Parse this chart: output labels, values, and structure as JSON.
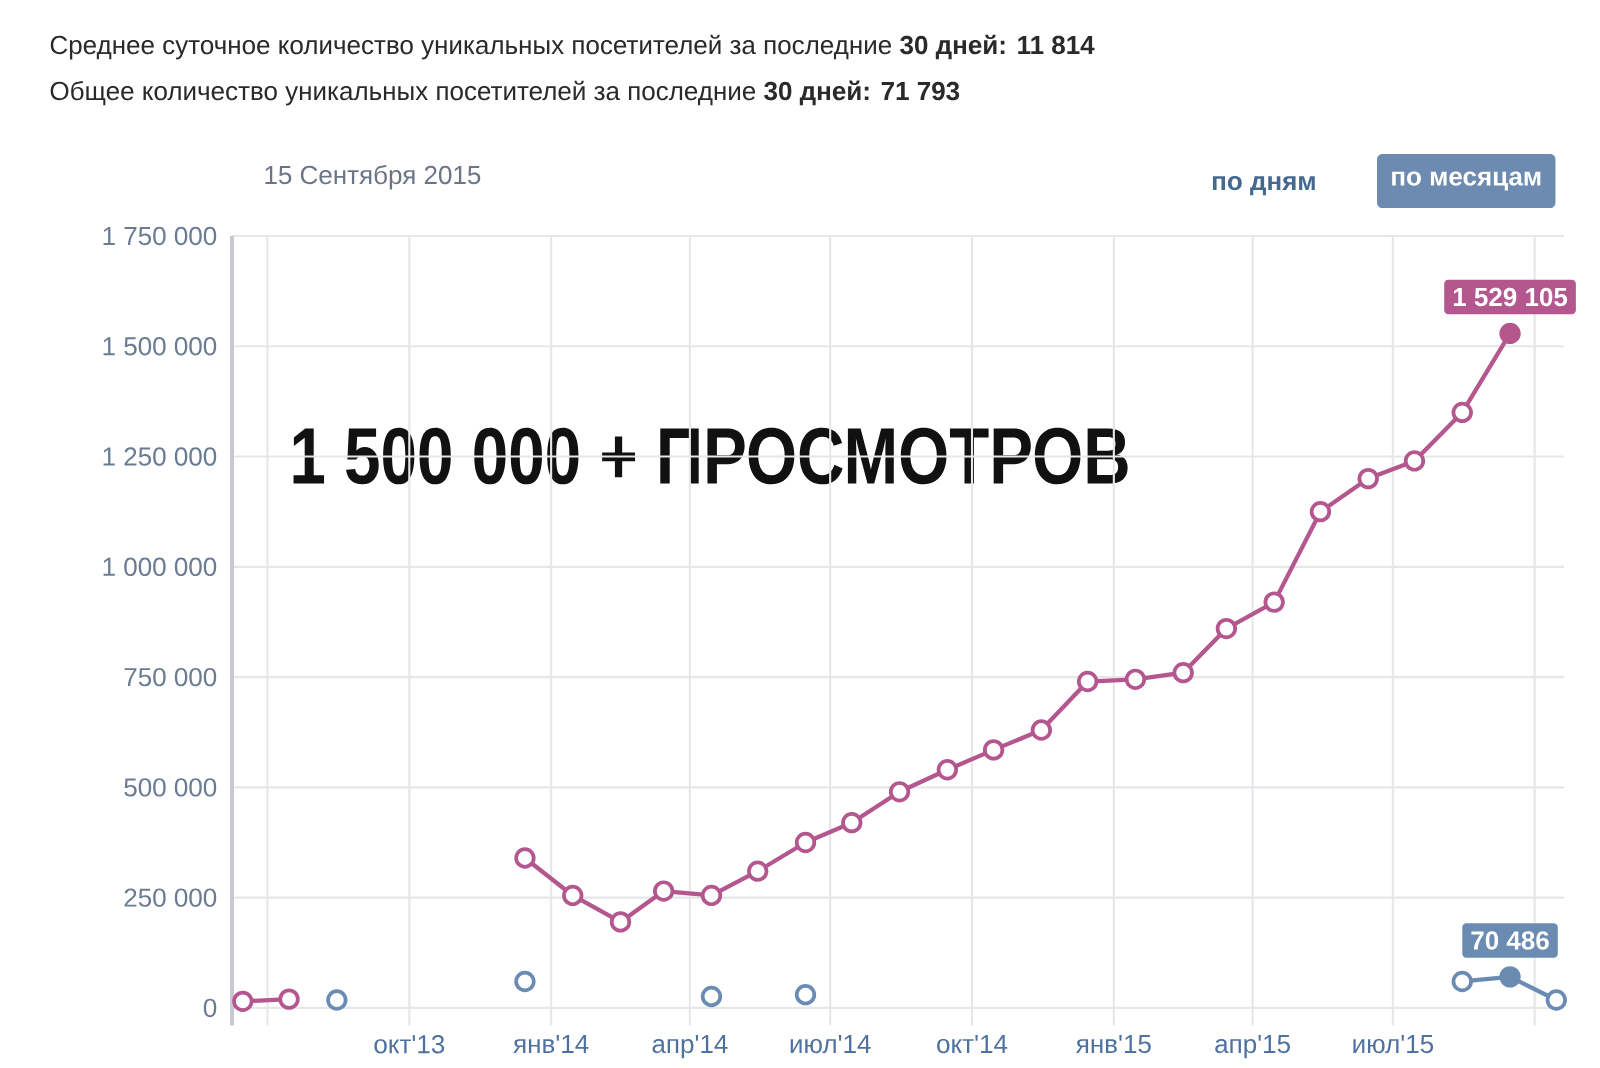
{
  "chart_data": {
    "type": "line",
    "title": "Среднее суточное количество уникальных посетителей за последние **30 дней: 11 814**",
    "subtitle": "Общее количество уникальных посетителей за последние **30 дней: 71 793**",
    "annotations": [
      "15 Сентября 2015",
      "по дням",
      "по месяцам",
      "1 500 000 + ПРОСМОТРОВ"
    ],
    "x": [
      "2013-06-15",
      "2013-07-15",
      "2013-08-15",
      "2013-09-15",
      "2013-10-15",
      "2013-11-15",
      "2013-12-15",
      "2014-01-15",
      "2014-02-15",
      "2014-03-15",
      "2014-04-15",
      "2014-05-15",
      "2014-06-15",
      "2014-07-15",
      "2014-08-15",
      "2014-09-15",
      "2014-10-15",
      "2014-11-15",
      "2014-12-15",
      "2015-01-15",
      "2015-02-15",
      "2015-03-15",
      "2015-04-15",
      "2015-05-15",
      "2015-06-15",
      "2015-07-15",
      "2015-08-15",
      "2015-09-15",
      "2015-10-15"
    ],
    "series": [
      {
        "color": "#b4578f",
        "values": [
          15000,
          20000,
          null,
          null,
          null,
          null,
          340000,
          255000,
          195000,
          265000,
          255000,
          310000,
          375000,
          420000,
          490000,
          540000,
          585000,
          630000,
          740000,
          745000,
          760000,
          860000,
          920000,
          1125000,
          1200000,
          1240000,
          1350000,
          1529105,
          null
        ],
        "value_labels": [
          null,
          null,
          null,
          null,
          null,
          null,
          null,
          null,
          null,
          null,
          null,
          null,
          null,
          null,
          null,
          null,
          null,
          null,
          null,
          null,
          null,
          null,
          null,
          null,
          null,
          null,
          null,
          "1 529 105",
          null
        ]
      },
      {
        "color": "#6a8cb2",
        "values": [
          null,
          null,
          18000,
          null,
          null,
          null,
          60000,
          null,
          null,
          null,
          26000,
          null,
          30000,
          null,
          null,
          null,
          null,
          null,
          null,
          null,
          null,
          null,
          null,
          null,
          null,
          null,
          60000,
          70486,
          18000
        ],
        "value_labels": [
          null,
          null,
          null,
          null,
          null,
          null,
          null,
          null,
          null,
          null,
          null,
          null,
          null,
          null,
          null,
          null,
          null,
          null,
          null,
          null,
          null,
          null,
          null,
          null,
          null,
          null,
          null,
          "70 486",
          null
        ]
      }
    ],
    "xlim": [
      "2013-06-08",
      "2015-10-20"
    ],
    "xticks": [
      {
        "value": "2013-07-01",
        "label": null
      },
      {
        "value": "2013-10-01",
        "label": "окт'13"
      },
      {
        "value": "2014-01-01",
        "label": "янв'14"
      },
      {
        "value": "2014-04-01",
        "label": "апр'14"
      },
      {
        "value": "2014-07-01",
        "label": "июл'14"
      },
      {
        "value": "2014-10-01",
        "label": "окт'14"
      },
      {
        "value": "2015-01-01",
        "label": "янв'15"
      },
      {
        "value": "2015-04-01",
        "label": "апр'15"
      },
      {
        "value": "2015-07-01",
        "label": "июл'15"
      },
      {
        "value": "2015-10-01",
        "label": null
      }
    ],
    "ylim": [
      -40000,
      1750000
    ],
    "yticks": [
      {
        "value": 0,
        "label": "0"
      },
      {
        "value": 250000,
        "label": "250 000"
      },
      {
        "value": 500000,
        "label": "500 000"
      },
      {
        "value": 750000,
        "label": "750 000"
      },
      {
        "value": 1000000,
        "label": "1 000 000"
      },
      {
        "value": 1250000,
        "label": "1 250 000"
      },
      {
        "value": 1500000,
        "label": "1 500 000"
      },
      {
        "value": 1750000,
        "label": "1 750 000"
      }
    ],
    "grid": true,
    "marker": "circle",
    "line_style": "solid"
  }
}
